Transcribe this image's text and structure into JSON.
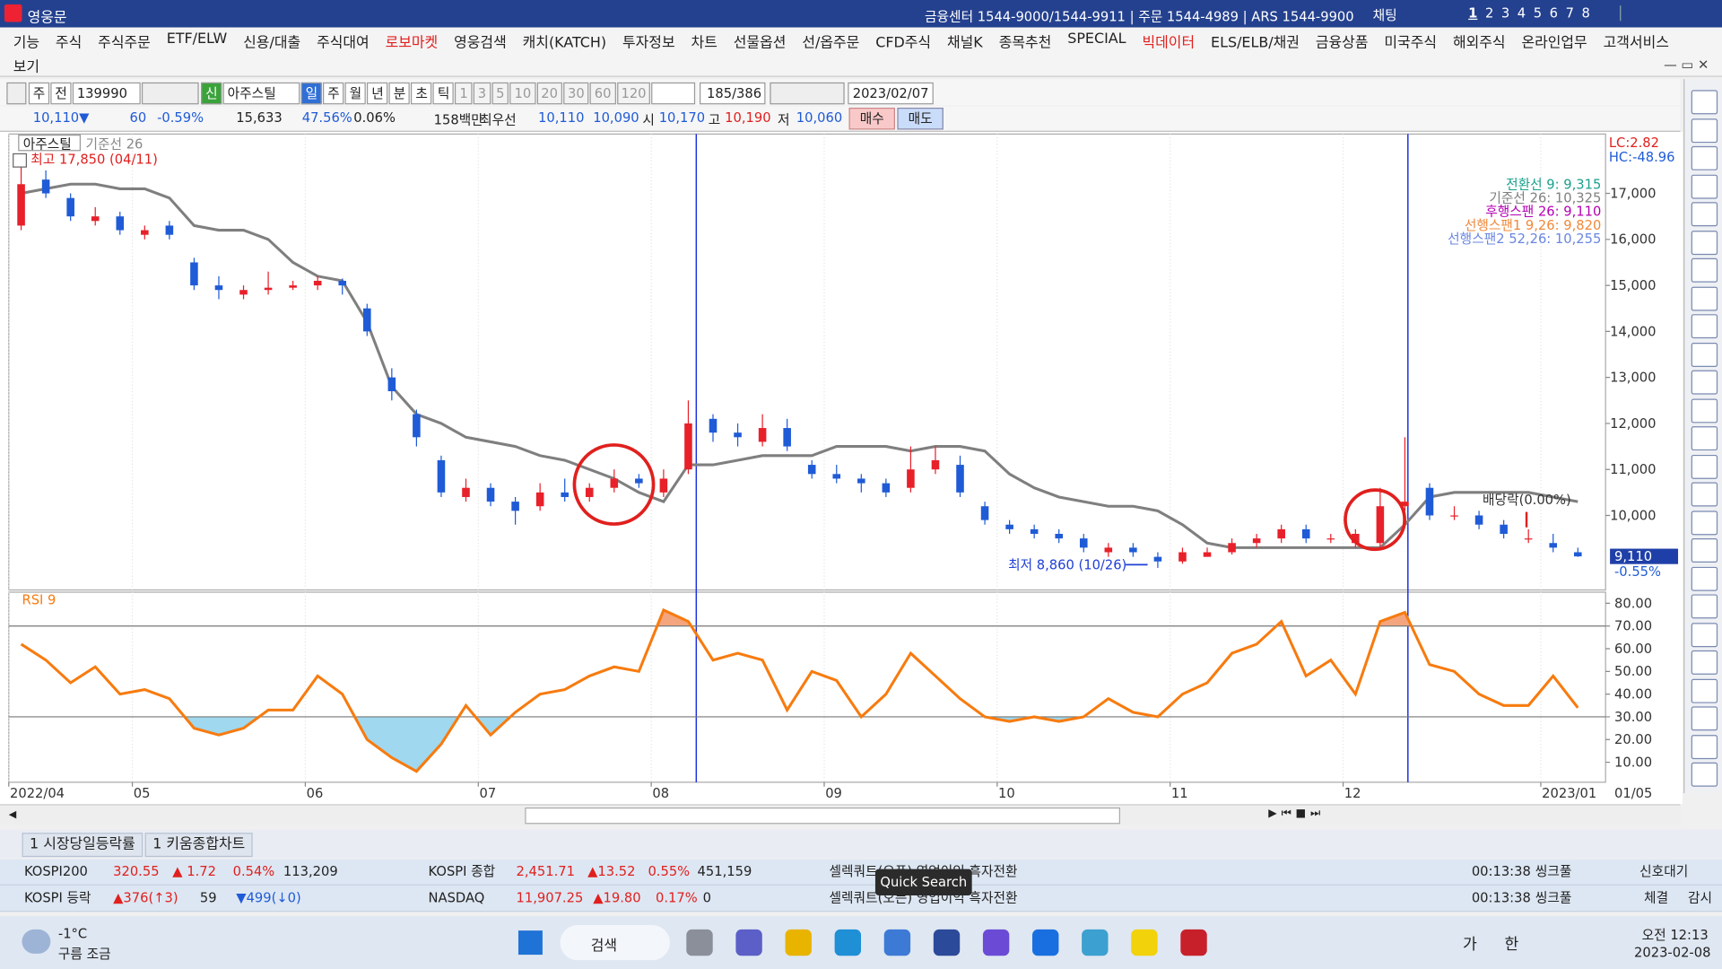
{
  "title_bar": {
    "app": "영웅문",
    "info": "금융센터 1544-9000/1544-9911 | 주문 1544-4989 | ARS 1544-9900",
    "chat": "채팅",
    "pages": [
      "1",
      "2",
      "3",
      "4",
      "5",
      "6",
      "7",
      "8"
    ]
  },
  "menu": [
    "기능",
    "주식",
    "주식주문",
    "ETF/ELW",
    "신용/대출",
    "주식대여",
    "로보마켓",
    "영웅검색",
    "캐치(KATCH)",
    "투자정보",
    "차트",
    "선물옵션",
    "선/옵주문",
    "CFD주식",
    "채널K",
    "종목추천",
    "SPECIAL",
    "빅데이터",
    "ELS/ELB/채권",
    "금융상품",
    "미국주식",
    "해외주식",
    "온라인업무",
    "고객서비스"
  ],
  "menu_row2": [
    "보기"
  ],
  "toolbar": {
    "modes": [
      "주",
      "전"
    ],
    "code": "139990",
    "badge": "신",
    "name": "아주스틸",
    "periods": [
      "일",
      "주",
      "월",
      "년",
      "분",
      "초",
      "틱"
    ],
    "intervals": [
      "1",
      "3",
      "5",
      "10",
      "20",
      "30",
      "60",
      "120"
    ],
    "count": "185/386",
    "date": "2023/02/07"
  },
  "quote": {
    "price": "10,110▼",
    "change": "60",
    "rate": "-0.59%",
    "volume": "15,633",
    "volume_ratio": "47.56%",
    "turnover": "0.06%",
    "amount": "158백만",
    "best_label": "최우선",
    "best_ask": "10,110",
    "best_bid": "10,090",
    "open_label": "시",
    "open": "10,170",
    "high_label": "고",
    "high": "10,190",
    "low_label": "저",
    "low": "10,060",
    "buy": "매수",
    "sell": "매도"
  },
  "chart_data": [
    {
      "type": "candlestick",
      "title": "아주스틸",
      "candles": [
        [
          16300,
          17850,
          16200,
          17200
        ],
        [
          17300,
          17500,
          16900,
          17000
        ],
        [
          16900,
          17000,
          16400,
          16500
        ],
        [
          16400,
          16700,
          16300,
          16500
        ],
        [
          16500,
          16600,
          16100,
          16200
        ],
        [
          16100,
          16300,
          16000,
          16200
        ],
        [
          16300,
          16400,
          16000,
          16100
        ],
        [
          15500,
          15600,
          14900,
          15000
        ],
        [
          15000,
          15200,
          14700,
          14900
        ],
        [
          14800,
          15000,
          14700,
          14900
        ],
        [
          14900,
          15300,
          14800,
          14950
        ],
        [
          14950,
          15100,
          14900,
          15000
        ],
        [
          15000,
          15200,
          14900,
          15100
        ],
        [
          15100,
          15150,
          14800,
          15000
        ],
        [
          14500,
          14600,
          13900,
          14000
        ],
        [
          13000,
          13200,
          12500,
          12700
        ],
        [
          12200,
          12300,
          11500,
          11700
        ],
        [
          11200,
          11300,
          10400,
          10500
        ],
        [
          10400,
          10800,
          10300,
          10600
        ],
        [
          10600,
          10700,
          10200,
          10300
        ],
        [
          10300,
          10400,
          9800,
          10100
        ],
        [
          10200,
          10700,
          10100,
          10500
        ],
        [
          10500,
          10800,
          10300,
          10400
        ],
        [
          10400,
          10700,
          10300,
          10600
        ],
        [
          10600,
          11000,
          10500,
          10800
        ],
        [
          10800,
          10900,
          10600,
          10700
        ],
        [
          10500,
          11000,
          10400,
          10800
        ],
        [
          11000,
          12500,
          10900,
          12000
        ],
        [
          12100,
          12200,
          11600,
          11800
        ],
        [
          11800,
          12000,
          11500,
          11700
        ],
        [
          11600,
          12200,
          11500,
          11900
        ],
        [
          11900,
          12100,
          11400,
          11500
        ],
        [
          11100,
          11200,
          10800,
          10900
        ],
        [
          10900,
          11100,
          10700,
          10800
        ],
        [
          10800,
          10900,
          10500,
          10700
        ],
        [
          10700,
          10800,
          10400,
          10500
        ],
        [
          10600,
          11500,
          10500,
          11000
        ],
        [
          11000,
          11500,
          10900,
          11200
        ],
        [
          11100,
          11300,
          10400,
          10500
        ],
        [
          10200,
          10300,
          9800,
          9900
        ],
        [
          9800,
          9900,
          9600,
          9700
        ],
        [
          9700,
          9800,
          9500,
          9600
        ],
        [
          9600,
          9700,
          9400,
          9500
        ],
        [
          9500,
          9600,
          9200,
          9300
        ],
        [
          9200,
          9400,
          9100,
          9300
        ],
        [
          9300,
          9400,
          9100,
          9200
        ],
        [
          9100,
          9200,
          8860,
          9000
        ],
        [
          9000,
          9300,
          8950,
          9200
        ],
        [
          9100,
          9300,
          9100,
          9200
        ],
        [
          9200,
          9500,
          9150,
          9400
        ],
        [
          9400,
          9600,
          9300,
          9500
        ],
        [
          9500,
          9800,
          9400,
          9700
        ],
        [
          9700,
          9800,
          9400,
          9500
        ],
        [
          9500,
          9600,
          9400,
          9500
        ],
        [
          9400,
          9700,
          9300,
          9600
        ],
        [
          9400,
          10600,
          9300,
          10200
        ],
        [
          10200,
          11700,
          10100,
          10300
        ],
        [
          10600,
          10700,
          9900,
          10000
        ],
        [
          10000,
          10200,
          9900,
          10000
        ],
        [
          10000,
          10100,
          9700,
          9800
        ],
        [
          9800,
          9900,
          9500,
          9600
        ],
        [
          9500,
          9700,
          9400,
          9500
        ],
        [
          9400,
          9600,
          9200,
          9300
        ],
        [
          9200,
          9300,
          9100,
          9110
        ]
      ],
      "up_color": "#e8202a",
      "down_color": "#1f5bd6",
      "series": [
        {
          "name": "기준선 26",
          "color": "#7f7f7f",
          "values": [
            17000,
            17100,
            17200,
            17200,
            17100,
            17100,
            16900,
            16300,
            16200,
            16200,
            16000,
            15500,
            15200,
            15100,
            14200,
            12800,
            12200,
            12000,
            11700,
            11600,
            11500,
            11300,
            11200,
            11000,
            10800,
            10500,
            10300,
            11100,
            11100,
            11200,
            11300,
            11300,
            11300,
            11500,
            11500,
            11500,
            11400,
            11500,
            11500,
            11400,
            10900,
            10600,
            10400,
            10300,
            10200,
            10200,
            10100,
            9800,
            9400,
            9300,
            9300,
            9300,
            9300,
            9300,
            9300,
            9300,
            9800,
            10400,
            10500,
            10500,
            10500,
            10500,
            10400,
            10300
          ]
        }
      ],
      "ylim": [
        8380,
        18290
      ],
      "yticks": [
        {
          "value": 10000,
          "label": "10,000"
        },
        {
          "value": 11000,
          "label": "11,000"
        },
        {
          "value": 12000,
          "label": "12,000"
        },
        {
          "value": 13000,
          "label": "13,000"
        },
        {
          "value": 14000,
          "label": "14,000"
        },
        {
          "value": 15000,
          "label": "15,000"
        },
        {
          "value": 16000,
          "label": "16,000"
        },
        {
          "value": 17000,
          "label": "17,000"
        }
      ],
      "annotations": {
        "high": "최고 17,850 (04/11)",
        "low": "최저 8,860 (10/26)",
        "dividend": "배당락(0.00%)",
        "lc": "LC:2.82",
        "hc": "HC:-48.96"
      },
      "legend": [
        {
          "text": "전환선 9: 9,315",
          "color": "#1aa08c"
        },
        {
          "text": "기준선 26: 10,325",
          "color": "#808080"
        },
        {
          "text": "후행스팬 26: 9,110",
          "color": "#b400b4"
        },
        {
          "text": "선행스팬1 9,26: 9,820",
          "color": "#f0883a"
        },
        {
          "text": "선행스팬2 52,26: 10,255",
          "color": "#6a86e0"
        }
      ],
      "last_price": {
        "value": 9110,
        "label": "9,110",
        "change": "-0.55%"
      }
    },
    {
      "type": "line",
      "title": "RSI 9",
      "color": "#f77b0f",
      "categories": [
        "2022/04",
        null,
        null,
        null,
        null,
        "05",
        null,
        null,
        null,
        null,
        null,
        null,
        "06",
        null,
        null,
        null,
        null,
        null,
        null,
        "07",
        null,
        null,
        null,
        null,
        null,
        null,
        "08",
        null,
        null,
        null,
        null,
        null,
        null,
        "09",
        null,
        null,
        null,
        null,
        null,
        null,
        "10",
        null,
        null,
        null,
        null,
        null,
        null,
        "11",
        null,
        null,
        null,
        null,
        null,
        null,
        "12",
        null,
        null,
        null,
        null,
        null,
        null,
        null,
        "2023/01",
        null
      ],
      "values": [
        62,
        55,
        45,
        52,
        40,
        42,
        38,
        25,
        22,
        25,
        33,
        33,
        48,
        40,
        20,
        12,
        6,
        18,
        35,
        22,
        32,
        40,
        42,
        48,
        52,
        50,
        77,
        72,
        55,
        58,
        55,
        33,
        50,
        46,
        30,
        40,
        58,
        48,
        38,
        30,
        28,
        30,
        28,
        30,
        38,
        32,
        30,
        40,
        45,
        58,
        62,
        72,
        48,
        55,
        40,
        72,
        76,
        53,
        50,
        40,
        35,
        35,
        48,
        34
      ],
      "ylim": [
        1.2,
        84.9
      ],
      "yticks": [
        {
          "value": 10,
          "label": "10.00"
        },
        {
          "value": 20,
          "label": "20.00"
        },
        {
          "value": 30,
          "label": "30.00"
        },
        {
          "value": 40,
          "label": "40.00"
        },
        {
          "value": 50,
          "label": "50.00"
        },
        {
          "value": 60,
          "label": "60.00"
        },
        {
          "value": 70,
          "label": "70.00"
        },
        {
          "value": 80,
          "label": "80.00"
        }
      ],
      "levels": [
        30,
        70
      ],
      "below_color": "#9fd8ef",
      "above_color": "#f4a57e",
      "x_end_label": "01/05"
    }
  ],
  "tabs": [
    "1 시장당일등락률",
    "1 키움종합차트"
  ],
  "ticker": [
    [
      "KOSPI200",
      "320.55",
      "▲ 1.72",
      "0.54%",
      "113,209",
      "KOSPI 종합",
      "2,451.71",
      "▲13.52",
      "0.55%",
      "451,159",
      "셀렉쿼트(오픈) 영업이익 흑자전환",
      "00:13:38",
      "씽크풀",
      "신호대기"
    ],
    [
      "KOSPI 등락",
      "▲376(↑3)",
      "59",
      "▼499(↓0)",
      "NASDAQ",
      "11,907.25",
      "▲19.80",
      "0.17%",
      "0",
      "셀렉쿼트(오픈) 영업이익 흑자전환",
      "00:13:38",
      "씽크풀",
      "체결",
      "감시"
    ]
  ],
  "tooltip": "Quick Search",
  "taskbar": {
    "temp": "-1°C",
    "weather": "구름 조금",
    "search": "검색",
    "ime1": "가",
    "ime2": "한",
    "time": "오전 12:13",
    "date": "2023-02-08"
  }
}
